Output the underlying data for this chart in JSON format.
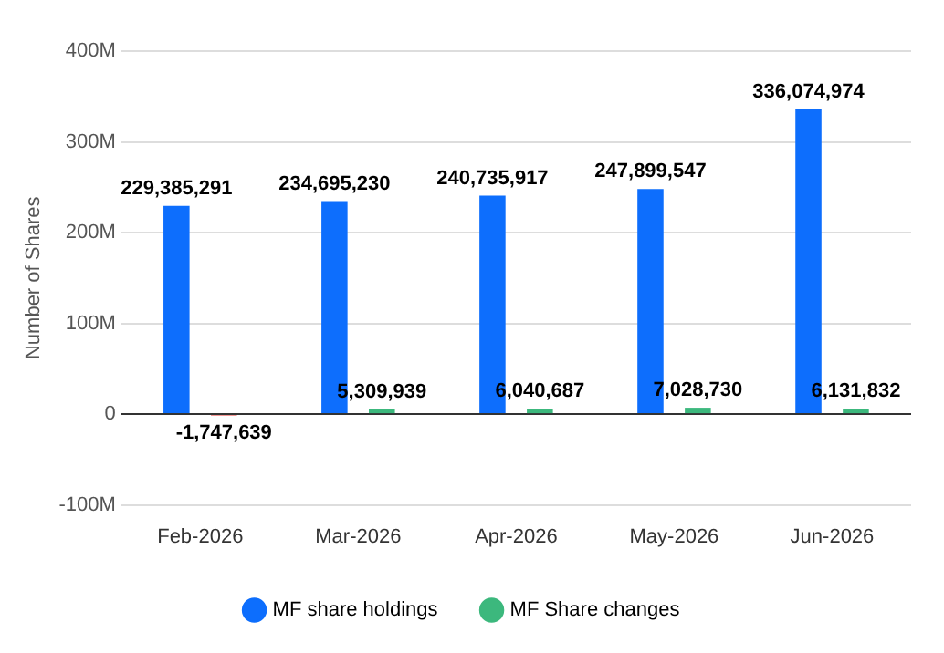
{
  "chart_data": {
    "type": "bar",
    "ylabel": "Number of Shares",
    "categories": [
      "Feb-2026",
      "Mar-2026",
      "Apr-2026",
      "May-2026",
      "Jun-2026"
    ],
    "series": [
      {
        "name": "MF share holdings",
        "color": "#0d6efd",
        "values": [
          229385291,
          234695230,
          240735917,
          247899547,
          336074974
        ],
        "value_labels": [
          "229,385,291",
          "234,695,230",
          "240,735,917",
          "247,899,547",
          "336,074,974"
        ]
      },
      {
        "name": "MF Share changes",
        "color": "#3cb87d",
        "colors": [
          "#f07470",
          "#3cb87d",
          "#3cb87d",
          "#3cb87d",
          "#3cb87d"
        ],
        "values": [
          -1747639,
          5309939,
          6040687,
          7028730,
          6131832
        ],
        "value_labels": [
          "-1,747,639",
          "5,309,939",
          "6,040,687",
          "7,028,730",
          "6,131,832"
        ]
      }
    ],
    "ylim": [
      -100000000,
      400000000
    ],
    "yticks": [
      {
        "value": -100000000,
        "label": "-100M"
      },
      0,
      {
        "value": 100000000,
        "label": "100M"
      },
      {
        "value": 200000000,
        "label": "200M"
      },
      {
        "value": 300000000,
        "label": "300M"
      },
      {
        "value": 400000000,
        "label": "400M"
      }
    ],
    "grid": "y",
    "legend": "bottom"
  }
}
